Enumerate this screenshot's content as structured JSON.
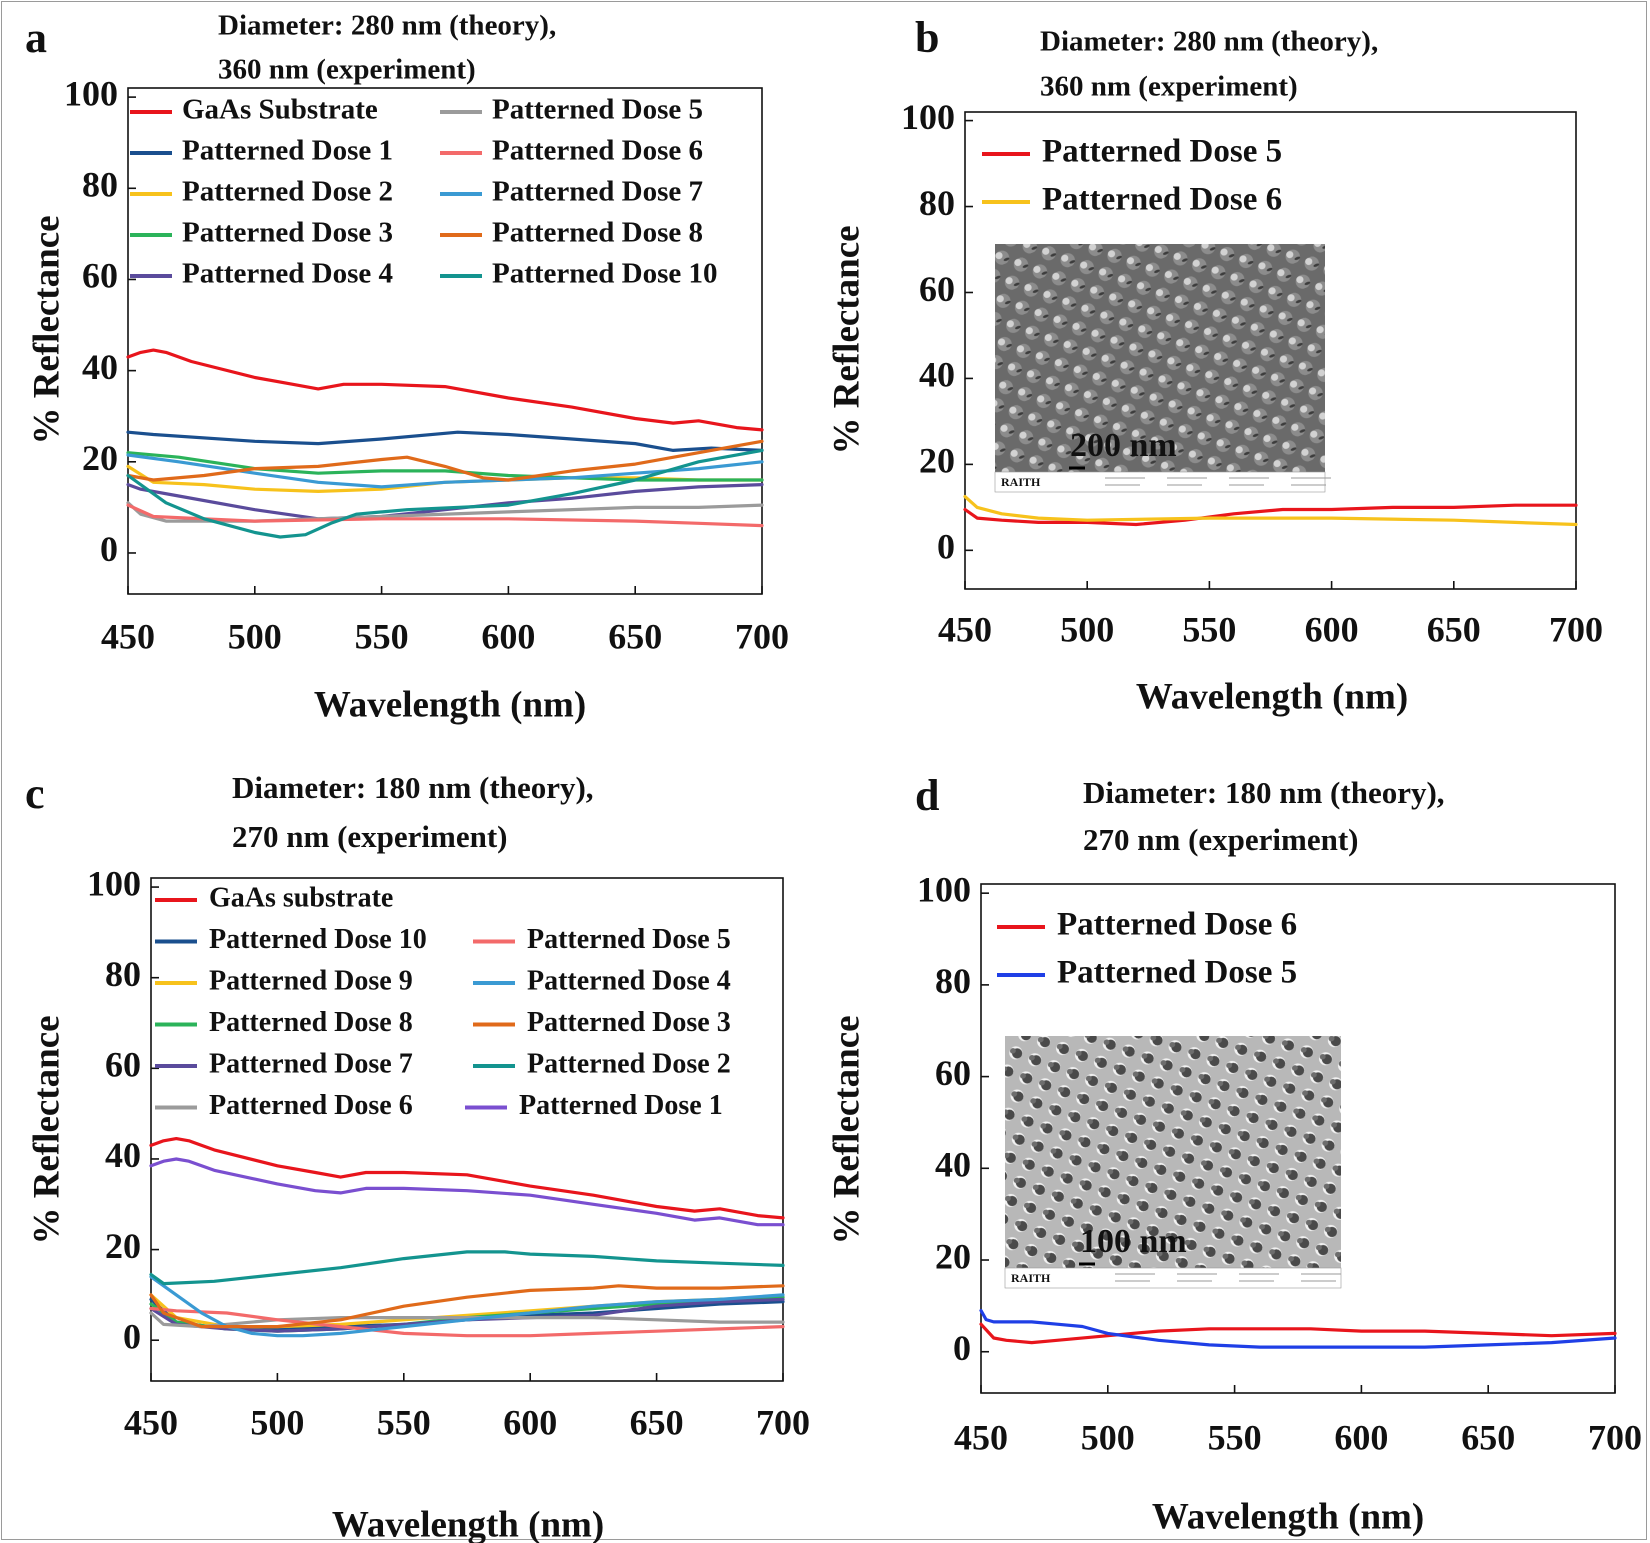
{
  "colors": {
    "red": "#e8151c",
    "darkblue": "#1a4f8e",
    "yellow": "#f7c21c",
    "green": "#2bb35a",
    "purple": "#5a4b9c",
    "gray": "#9b9b9b",
    "salmon": "#f36a6a",
    "lightblue": "#3a9ad3",
    "orange": "#e06a1a",
    "teal": "#13948f",
    "violet": "#7a4fd0",
    "blue": "#1f3fe6"
  },
  "chart_data": [
    {
      "panel_label": "a",
      "type": "line",
      "title": "Diameter: 280 nm (theory),",
      "subtitle": "360 nm (experiment)",
      "xlabel": "Wavelength (nm)",
      "ylabel": "% Reflectance",
      "xlim": [
        450,
        700
      ],
      "ylim": [
        -9,
        102
      ],
      "xticks": [
        "450",
        "500",
        "550",
        "600",
        "650",
        "700"
      ],
      "yticks": [
        "0",
        "20",
        "40",
        "60",
        "80",
        "100"
      ],
      "legend_placement": "top",
      "grid": false,
      "series": [
        {
          "name": "GaAs   Substrate",
          "color": "#e8151c",
          "x": [
            450,
            455,
            460,
            465,
            475,
            500,
            515,
            525,
            535,
            550,
            575,
            600,
            625,
            650,
            665,
            675,
            690,
            700
          ],
          "y": [
            43,
            44,
            44.5,
            44,
            42,
            38.5,
            37,
            36,
            37,
            37,
            36.5,
            34,
            32,
            29.5,
            28.5,
            29,
            27.5,
            27
          ]
        },
        {
          "name": "Patterned  Dose 1",
          "color": "#1a4f8e",
          "x": [
            450,
            460,
            500,
            525,
            550,
            580,
            600,
            625,
            650,
            665,
            680,
            700
          ],
          "y": [
            26.5,
            26,
            24.5,
            24,
            25,
            26.5,
            26,
            25,
            24,
            22.5,
            23,
            22.5
          ]
        },
        {
          "name": "Patterned  Dose 2",
          "color": "#f7c21c",
          "x": [
            450,
            460,
            480,
            500,
            525,
            550,
            575,
            600,
            625,
            650,
            675,
            700
          ],
          "y": [
            19,
            15.5,
            15,
            14,
            13.5,
            14,
            15.5,
            16,
            16.5,
            16.5,
            16,
            16
          ]
        },
        {
          "name": "Patterned  Dose 3",
          "color": "#2bb35a",
          "x": [
            450,
            470,
            500,
            525,
            550,
            575,
            600,
            625,
            650,
            675,
            700
          ],
          "y": [
            22,
            21,
            18.5,
            17.5,
            18,
            18,
            17,
            16.5,
            16,
            16,
            16
          ]
        },
        {
          "name": "Patterned  Dose 4",
          "color": "#5a4b9c",
          "x": [
            450,
            455,
            470,
            500,
            525,
            550,
            575,
            600,
            625,
            650,
            675,
            700
          ],
          "y": [
            15,
            14,
            12.5,
            9.5,
            7.5,
            8,
            9.5,
            11,
            12,
            13.5,
            14.5,
            15
          ]
        },
        {
          "name": "Patterned  Dose 5",
          "color": "#9b9b9b",
          "x": [
            450,
            455,
            465,
            500,
            550,
            600,
            650,
            675,
            700
          ],
          "y": [
            11,
            8.5,
            7,
            7,
            8,
            9,
            10,
            10,
            10.5
          ]
        },
        {
          "name": "Patterned  Dose 6",
          "color": "#f36a6a",
          "x": [
            450,
            460,
            480,
            500,
            550,
            600,
            650,
            675,
            700
          ],
          "y": [
            10.5,
            8,
            7.5,
            7,
            7.5,
            7.5,
            7,
            6.5,
            6
          ]
        },
        {
          "name": "Patterned  Dose 7",
          "color": "#3a9ad3",
          "x": [
            450,
            470,
            500,
            525,
            550,
            575,
            600,
            625,
            650,
            675,
            700
          ],
          "y": [
            21.5,
            20,
            17.5,
            15.5,
            14.5,
            15.5,
            16,
            16.5,
            17.5,
            18.5,
            20
          ]
        },
        {
          "name": "Patterned  Dose 8",
          "color": "#e06a1a",
          "x": [
            450,
            460,
            480,
            500,
            525,
            550,
            560,
            575,
            590,
            600,
            625,
            650,
            675,
            700
          ],
          "y": [
            17,
            16,
            17,
            18.5,
            19,
            20.5,
            21,
            19,
            16.5,
            16,
            18,
            19.5,
            22,
            24.5
          ]
        },
        {
          "name": "Patterned Dose 10",
          "color": "#13948f",
          "x": [
            450,
            465,
            480,
            500,
            510,
            520,
            530,
            540,
            560,
            600,
            625,
            650,
            675,
            700
          ],
          "y": [
            17,
            11,
            7.5,
            4.5,
            3.5,
            4,
            6.5,
            8.5,
            9.5,
            10.5,
            13,
            16,
            20,
            22.5
          ]
        }
      ]
    },
    {
      "panel_label": "b",
      "type": "line",
      "title": "Diameter: 280 nm (theory),",
      "subtitle": "360 nm (experiment)",
      "xlabel": "Wavelength (nm)",
      "ylabel": "% Reflectance",
      "xlim": [
        450,
        700
      ],
      "ylim": [
        -9,
        102
      ],
      "xticks": [
        "450",
        "500",
        "550",
        "600",
        "650",
        "700"
      ],
      "yticks": [
        "0",
        "20",
        "40",
        "60",
        "80",
        "100"
      ],
      "legend_placement": "top-left",
      "grid": false,
      "inset": {
        "scale_label": "200 nm",
        "watermark": "RAITH"
      },
      "series": [
        {
          "name": "Patterned Dose 5",
          "color": "#e8151c",
          "x": [
            450,
            455,
            465,
            480,
            500,
            520,
            540,
            560,
            580,
            600,
            625,
            650,
            675,
            700
          ],
          "y": [
            9.5,
            7.5,
            7,
            6.5,
            6.5,
            6,
            7,
            8.5,
            9.5,
            9.5,
            10,
            10,
            10.5,
            10.5
          ]
        },
        {
          "name": "Patterned Dose 6",
          "color": "#f7c21c",
          "x": [
            450,
            455,
            465,
            480,
            500,
            550,
            600,
            650,
            675,
            700
          ],
          "y": [
            12.5,
            10,
            8.5,
            7.5,
            7,
            7.5,
            7.5,
            7,
            6.5,
            6
          ]
        }
      ]
    },
    {
      "panel_label": "c",
      "type": "line",
      "title": "Diameter: 180 nm (theory),",
      "subtitle": "270 nm (experiment)",
      "xlabel": "Wavelength (nm)",
      "ylabel": "% Reflectance",
      "xlim": [
        450,
        700
      ],
      "ylim": [
        -9,
        102
      ],
      "xticks": [
        "450",
        "500",
        "550",
        "600",
        "650",
        "700"
      ],
      "yticks": [
        "0",
        "20",
        "40",
        "60",
        "80",
        "100"
      ],
      "legend_placement": "top",
      "grid": false,
      "series": [
        {
          "name": "GaAs substrate",
          "color": "#e8151c",
          "x": [
            450,
            455,
            460,
            465,
            475,
            500,
            515,
            525,
            535,
            550,
            575,
            600,
            625,
            650,
            665,
            675,
            690,
            700
          ],
          "y": [
            43,
            44,
            44.5,
            44,
            42,
            38.5,
            37,
            36,
            37,
            37,
            36.5,
            34,
            32,
            29.5,
            28.5,
            29,
            27.5,
            27
          ]
        },
        {
          "name": "Patterned Dose 10",
          "color": "#1a4f8e",
          "x": [
            450,
            460,
            480,
            500,
            525,
            550,
            575,
            600,
            625,
            650,
            675,
            700
          ],
          "y": [
            9,
            4,
            2.5,
            2.5,
            3,
            3.5,
            4.5,
            5.5,
            6,
            7,
            8,
            8.5
          ]
        },
        {
          "name": "Patterned Dose 9",
          "color": "#f7c21c",
          "x": [
            450,
            460,
            480,
            500,
            525,
            550,
            575,
            600,
            625,
            650,
            675,
            700
          ],
          "y": [
            10,
            5,
            3,
            3,
            3.5,
            4.5,
            5.5,
            6.5,
            7.5,
            8.5,
            9,
            9.5
          ]
        },
        {
          "name": "Patterned Dose 8",
          "color": "#2bb35a",
          "x": [
            450,
            460,
            480,
            500,
            525,
            550,
            575,
            600,
            625,
            650,
            675,
            700
          ],
          "y": [
            8,
            4,
            2.5,
            2,
            2.5,
            3.5,
            5,
            6,
            7,
            8,
            9,
            9.5
          ]
        },
        {
          "name": "Patterned Dose 7",
          "color": "#5a4b9c",
          "x": [
            450,
            460,
            480,
            500,
            525,
            550,
            575,
            600,
            625,
            650,
            675,
            700
          ],
          "y": [
            7,
            3.5,
            2.5,
            2,
            2.5,
            3.5,
            4.5,
            5,
            5.5,
            7.5,
            8.5,
            9
          ]
        },
        {
          "name": "Patterned Dose 6",
          "color": "#9b9b9b",
          "x": [
            450,
            455,
            470,
            500,
            525,
            550,
            575,
            600,
            625,
            650,
            675,
            700
          ],
          "y": [
            6,
            3.5,
            3,
            4.5,
            5,
            5,
            5,
            5,
            5,
            4.5,
            4,
            4
          ]
        },
        {
          "name": "Patterned Dose 5",
          "color": "#f36a6a",
          "x": [
            450,
            460,
            480,
            500,
            525,
            550,
            575,
            600,
            625,
            650,
            675,
            700
          ],
          "y": [
            7,
            6.5,
            6,
            4.5,
            3,
            1.5,
            1,
            1,
            1.5,
            2,
            2.5,
            3
          ]
        },
        {
          "name": "Patterned Dose 4",
          "color": "#3a9ad3",
          "x": [
            450,
            460,
            470,
            480,
            490,
            500,
            510,
            525,
            550,
            575,
            600,
            625,
            650,
            675,
            700
          ],
          "y": [
            14,
            10,
            6,
            3,
            1.5,
            1,
            1,
            1.5,
            3,
            4.5,
            6,
            7.5,
            8.5,
            9,
            10
          ]
        },
        {
          "name": "Patterned Dose 3",
          "color": "#e06a1a",
          "x": [
            450,
            455,
            470,
            500,
            525,
            550,
            575,
            600,
            625,
            635,
            650,
            675,
            700
          ],
          "y": [
            10,
            6,
            3,
            3,
            4.5,
            7.5,
            9.5,
            11,
            11.5,
            12,
            11.5,
            11.5,
            12
          ]
        },
        {
          "name": "Patterned  Dose 2",
          "color": "#13948f",
          "x": [
            450,
            455,
            475,
            500,
            525,
            550,
            575,
            590,
            600,
            625,
            650,
            675,
            700
          ],
          "y": [
            14.5,
            12.5,
            13,
            14.5,
            16,
            18,
            19.5,
            19.5,
            19,
            18.5,
            17.5,
            17,
            16.5
          ]
        },
        {
          "name": "Patterned Dose 1",
          "color": "#7a4fd0",
          "x": [
            450,
            455,
            460,
            465,
            475,
            500,
            515,
            525,
            535,
            550,
            575,
            600,
            625,
            650,
            665,
            675,
            690,
            700
          ],
          "y": [
            38.5,
            39.5,
            40,
            39.5,
            37.5,
            34.5,
            33,
            32.5,
            33.5,
            33.5,
            33,
            32,
            30,
            28,
            26.5,
            27,
            25.5,
            25.5
          ]
        }
      ]
    },
    {
      "panel_label": "d",
      "type": "line",
      "title": "Diameter: 180 nm (theory),",
      "subtitle": "270 nm (experiment)",
      "xlabel": "Wavelength (nm)",
      "ylabel": "% Reflectance",
      "xlim": [
        450,
        700
      ],
      "ylim": [
        -9,
        102
      ],
      "xticks": [
        "450",
        "500",
        "550",
        "600",
        "650",
        "700"
      ],
      "yticks": [
        "0",
        "20",
        "40",
        "60",
        "80",
        "100"
      ],
      "legend_placement": "top-left",
      "grid": false,
      "inset": {
        "scale_label": "100 nm",
        "watermark": "RAITH"
      },
      "series": [
        {
          "name": "Patterned Dose 6",
          "color": "#e8151c",
          "x": [
            450,
            455,
            460,
            470,
            480,
            500,
            520,
            540,
            560,
            580,
            600,
            625,
            650,
            675,
            700
          ],
          "y": [
            6,
            3,
            2.5,
            2,
            2.5,
            3.5,
            4.5,
            5,
            5,
            5,
            4.5,
            4.5,
            4,
            3.5,
            4
          ]
        },
        {
          "name": "Patterned Dose 5",
          "color": "#1f3fe6",
          "x": [
            450,
            452,
            455,
            460,
            470,
            480,
            490,
            500,
            520,
            540,
            560,
            580,
            600,
            625,
            650,
            675,
            700
          ],
          "y": [
            9,
            7,
            6.5,
            6.5,
            6.5,
            6,
            5.5,
            4,
            2.5,
            1.5,
            1,
            1,
            1,
            1,
            1.5,
            2,
            3
          ]
        }
      ]
    }
  ]
}
